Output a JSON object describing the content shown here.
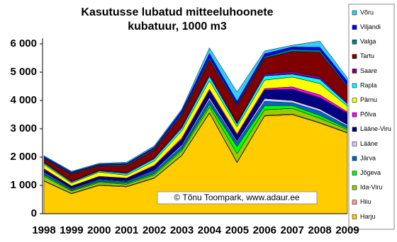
{
  "chart_data": {
    "type": "stacked-area",
    "title": [
      "Kasutusse lubatud mitteeluhoonete",
      "kubatuur, 1000 m3"
    ],
    "annotation": "© Tõnu Toompark, www.adaur.ee",
    "categories": [
      "1998",
      "1999",
      "2000",
      "2001",
      "2002",
      "2003",
      "2004",
      "2005",
      "2006",
      "2007",
      "2008",
      "2009"
    ],
    "ylim": [
      0,
      6000
    ],
    "yticks": [
      0,
      {
        "value": 1000,
        "label": "1 000"
      },
      {
        "value": 2000,
        "label": "2 000"
      },
      {
        "value": 3000,
        "label": "3 000"
      },
      {
        "value": 4000,
        "label": "4 000"
      },
      {
        "value": 5000,
        "label": "5 000"
      },
      {
        "value": 6000,
        "label": "6 000"
      }
    ],
    "series": [
      {
        "name": "Harju",
        "color": "#ffcc00",
        "values": [
          1150,
          700,
          1000,
          950,
          1250,
          2050,
          3550,
          1800,
          3450,
          3500,
          3200,
          2850
        ]
      },
      {
        "name": "Hiiu",
        "color": "#ff9999",
        "values": [
          20,
          20,
          20,
          20,
          20,
          20,
          20,
          20,
          20,
          20,
          20,
          20
        ]
      },
      {
        "name": "Ida-Viru",
        "color": "#99cc00",
        "values": [
          150,
          80,
          80,
          70,
          100,
          150,
          200,
          300,
          200,
          200,
          150,
          100
        ]
      },
      {
        "name": "Jõgeva",
        "color": "#00ff00",
        "values": [
          50,
          30,
          40,
          40,
          50,
          60,
          100,
          250,
          150,
          100,
          100,
          50
        ]
      },
      {
        "name": "Järva",
        "color": "#0066cc",
        "values": [
          60,
          50,
          60,
          60,
          80,
          100,
          150,
          150,
          150,
          100,
          150,
          80
        ]
      },
      {
        "name": "Lääne",
        "color": "#ccccff",
        "values": [
          30,
          20,
          20,
          20,
          30,
          50,
          80,
          50,
          100,
          80,
          80,
          50
        ]
      },
      {
        "name": "Lääne-Viru",
        "color": "#000080",
        "values": [
          100,
          60,
          80,
          80,
          150,
          200,
          250,
          200,
          300,
          400,
          400,
          400
        ]
      },
      {
        "name": "Põlva",
        "color": "#ff00ff",
        "values": [
          30,
          20,
          20,
          20,
          30,
          50,
          50,
          50,
          50,
          80,
          100,
          50
        ]
      },
      {
        "name": "Pärnu",
        "color": "#ffff00",
        "values": [
          150,
          100,
          150,
          100,
          150,
          250,
          300,
          250,
          300,
          350,
          400,
          200
        ]
      },
      {
        "name": "Rapla",
        "color": "#00ffff",
        "values": [
          50,
          40,
          40,
          60,
          80,
          100,
          150,
          100,
          150,
          100,
          150,
          80
        ]
      },
      {
        "name": "Saare",
        "color": "#800080",
        "values": [
          30,
          30,
          30,
          40,
          40,
          60,
          80,
          50,
          80,
          100,
          100,
          50
        ]
      },
      {
        "name": "Tartu",
        "color": "#800000",
        "values": [
          120,
          250,
          150,
          240,
          280,
          400,
          500,
          600,
          550,
          700,
          850,
          550
        ]
      },
      {
        "name": "Valga",
        "color": "#008080",
        "values": [
          30,
          30,
          30,
          40,
          40,
          60,
          80,
          50,
          50,
          80,
          80,
          50
        ]
      },
      {
        "name": "Viljandi",
        "color": "#0000ff",
        "values": [
          50,
          40,
          30,
          40,
          50,
          100,
          150,
          100,
          100,
          80,
          100,
          150
        ]
      },
      {
        "name": "Võru",
        "color": "#33ccff",
        "values": [
          30,
          30,
          30,
          40,
          50,
          50,
          200,
          330,
          100,
          60,
          220,
          120
        ]
      }
    ]
  }
}
